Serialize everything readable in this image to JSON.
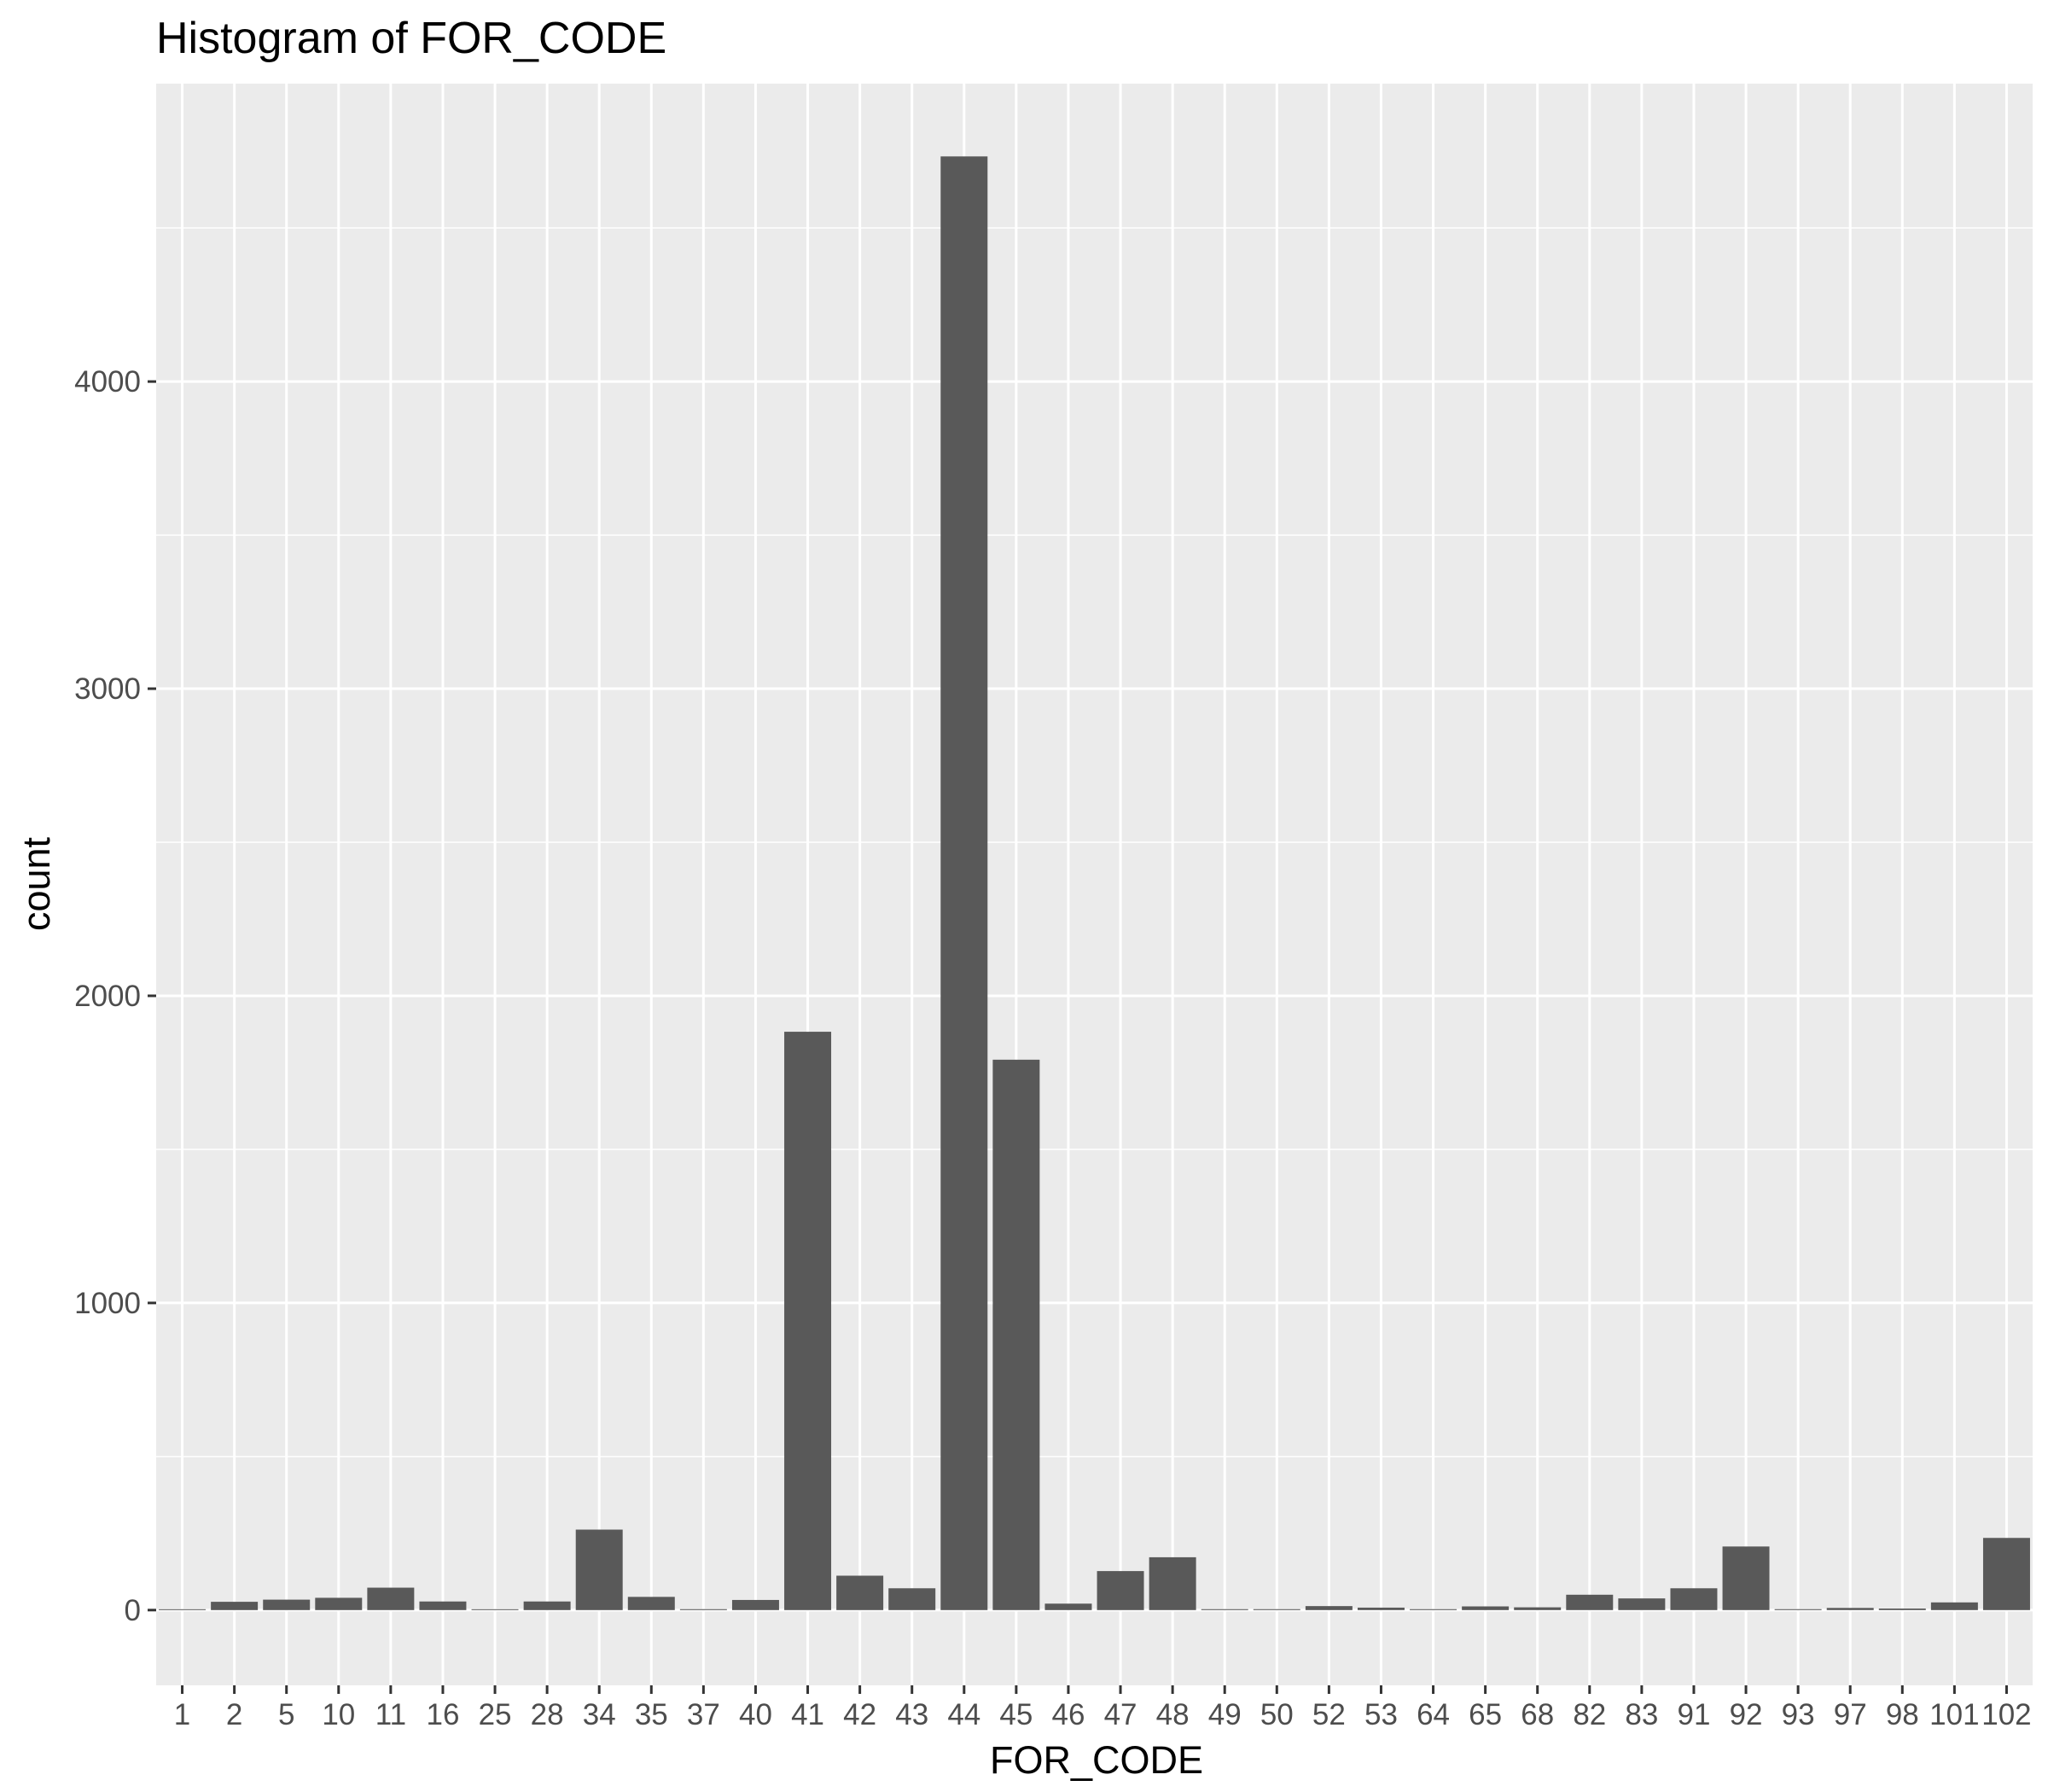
{
  "chart_data": {
    "type": "bar",
    "title": "Histogram of FOR_CODE",
    "xlabel": "FOR_CODE",
    "ylabel": "count",
    "categories": [
      "1",
      "2",
      "5",
      "10",
      "11",
      "16",
      "25",
      "28",
      "34",
      "35",
      "37",
      "40",
      "41",
      "42",
      "43",
      "44",
      "45",
      "46",
      "47",
      "48",
      "49",
      "50",
      "52",
      "53",
      "64",
      "65",
      "68",
      "82",
      "83",
      "91",
      "92",
      "93",
      "97",
      "98",
      "101",
      "102"
    ],
    "values": [
      2,
      27,
      34,
      40,
      73,
      28,
      2,
      28,
      262,
      43,
      3,
      33,
      1883,
      112,
      71,
      4733,
      1792,
      21,
      127,
      172,
      3,
      3,
      13,
      8,
      3,
      12,
      9,
      50,
      38,
      71,
      207,
      3,
      7,
      5,
      25,
      235
    ],
    "yticks": [
      0,
      1000,
      2000,
      3000,
      4000
    ],
    "ylim": [
      -245,
      4970
    ],
    "grid": true,
    "legend": "none",
    "colors": {
      "bar": "#595959",
      "panel": "#ebebeb",
      "grid": "#ffffff",
      "tick_text": "#4d4d4d"
    }
  }
}
